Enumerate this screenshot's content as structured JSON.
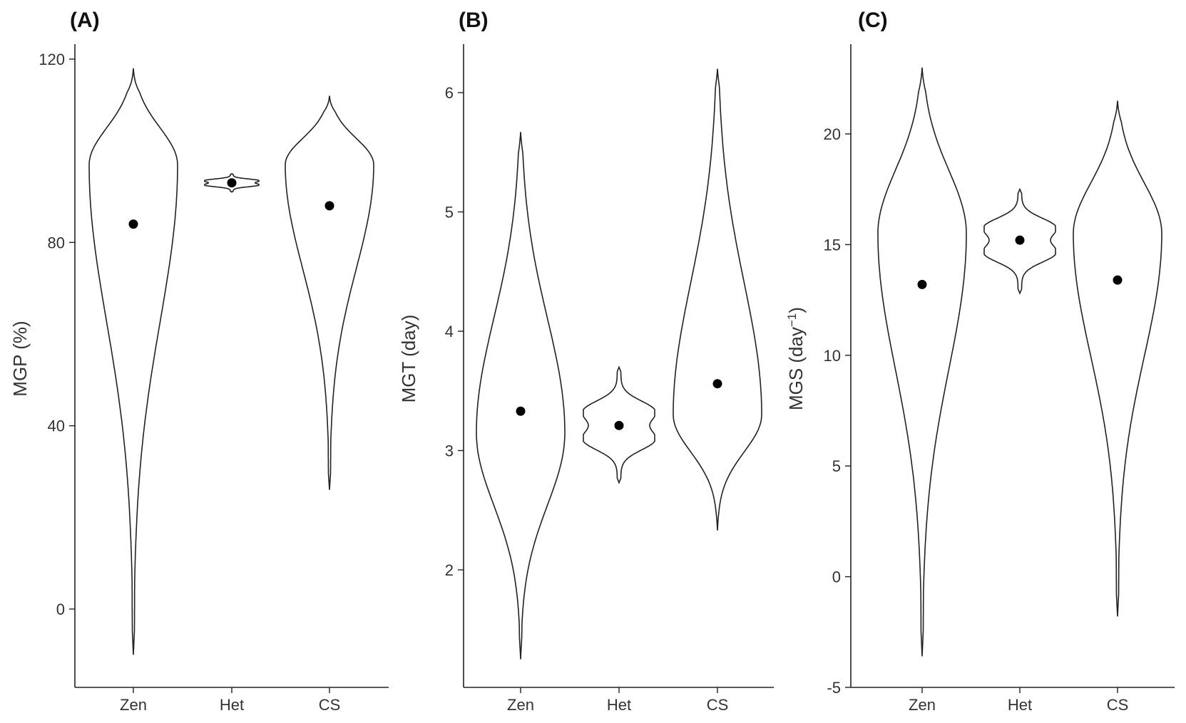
{
  "chart_data": [
    {
      "type": "violin",
      "panel_label": "(A)",
      "ylabel": "MGP (%)",
      "ylabel_unit_superscript": "",
      "ylabel_suffix": "",
      "categories": [
        "Zen",
        "Het",
        "CS"
      ],
      "ylim": [
        -16,
        122
      ],
      "yticks": [
        0,
        40,
        80,
        120
      ],
      "ytick_labels": [
        "0",
        "40",
        "80",
        "120"
      ],
      "series": [
        {
          "category": "Zen",
          "mean": 84,
          "min": -10,
          "max": 118,
          "mode": 97
        },
        {
          "category": "Het",
          "mean": 93,
          "min": 91,
          "max": 95,
          "mode": 93
        },
        {
          "category": "CS",
          "mean": 88,
          "min": 26,
          "max": 112,
          "mode": 97
        }
      ]
    },
    {
      "type": "violin",
      "panel_label": "(B)",
      "ylabel": "MGT (day)",
      "ylabel_unit_superscript": "",
      "ylabel_suffix": "",
      "categories": [
        "Zen",
        "Het",
        "CS"
      ],
      "ylim": [
        1.0,
        6.45
      ],
      "yticks": [
        2,
        3,
        4,
        5,
        6
      ],
      "ytick_labels": [
        "2",
        "3",
        "4",
        "5",
        "6"
      ],
      "series": [
        {
          "category": "Zen",
          "mean": 3.33,
          "min": 1.25,
          "max": 5.67,
          "mode": 3.15
        },
        {
          "category": "Het",
          "mean": 3.21,
          "min": 2.73,
          "max": 3.7,
          "mode": 3.21
        },
        {
          "category": "CS",
          "mean": 3.56,
          "min": 2.33,
          "max": 6.2,
          "mode": 3.3
        }
      ]
    },
    {
      "type": "violin",
      "panel_label": "(C)",
      "ylabel": "MGS (day",
      "ylabel_unit_superscript": "−1",
      "ylabel_suffix": ")",
      "categories": [
        "Zen",
        "Het",
        "CS"
      ],
      "ylim": [
        -5,
        24
      ],
      "yticks": [
        -5,
        0,
        5,
        10,
        15,
        20
      ],
      "ytick_labels": [
        "-5",
        "0",
        "5",
        "10",
        "15",
        "20"
      ],
      "series": [
        {
          "category": "Zen",
          "mean": 13.2,
          "min": -3.6,
          "max": 23,
          "mode": 15.5
        },
        {
          "category": "Het",
          "mean": 15.2,
          "min": 12.8,
          "max": 17.5,
          "mode": 15.2
        },
        {
          "category": "CS",
          "mean": 13.4,
          "min": -1.8,
          "max": 21.5,
          "mode": 15.5
        }
      ]
    }
  ]
}
